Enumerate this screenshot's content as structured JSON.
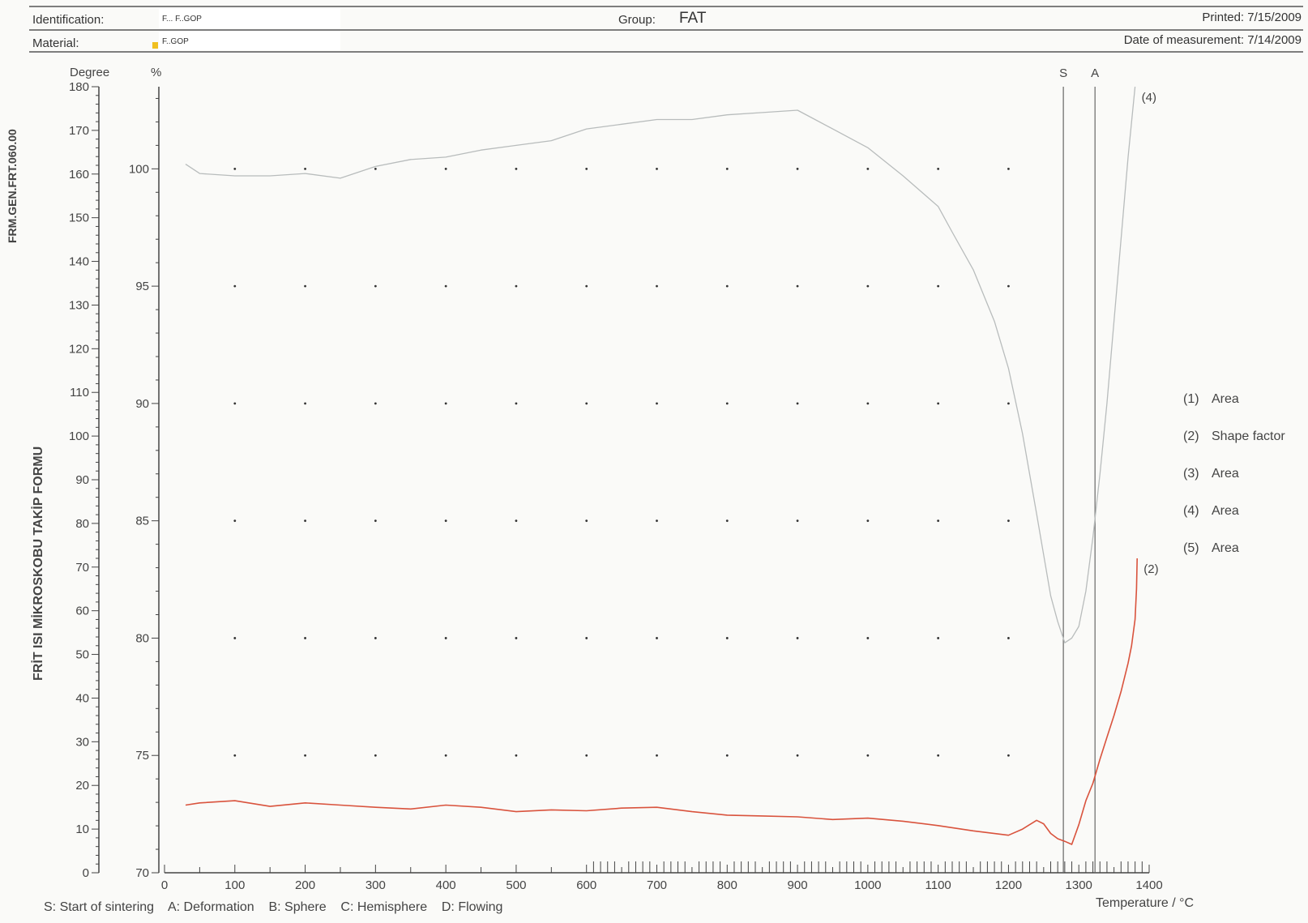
{
  "header": {
    "identification_label": "Identification:",
    "identification_value": "F... F..GOP",
    "material_label": "Material:",
    "material_value": "F..GOP",
    "group_label": "Group:",
    "group_value": "FAT",
    "printed": "Printed: 7/15/2009",
    "measured": "Date of measurement: 7/14/2009"
  },
  "side_labels": {
    "form_code": "FRM.GEN.FRT.060.00",
    "form_title": "FRİT ISI MİKROSKOBU TAKİP FORMU"
  },
  "footer": {
    "legend_text": "S: Start of sintering    A: Deformation    B: Sphere    C: Hemisphere    D: Flowing"
  },
  "colors": {
    "area": "#b8bcbc",
    "shape_factor": "#d9533d",
    "green": "#7fa36a",
    "teal": "#4b9c9a",
    "grey": "#c8cccc",
    "axis": "#444444"
  },
  "chart_data": {
    "type": "line",
    "xlabel": "Temperature / °C",
    "xlim": [
      0,
      1400
    ],
    "x_ticks": [
      0,
      100,
      200,
      300,
      400,
      500,
      600,
      700,
      800,
      900,
      1000,
      1100,
      1200,
      1300,
      1400
    ],
    "y_axes": {
      "degree": {
        "label": "Degree",
        "range": [
          0,
          180
        ],
        "ticks": [
          0,
          10,
          20,
          30,
          40,
          50,
          60,
          70,
          80,
          90,
          100,
          110,
          120,
          130,
          140,
          150,
          160,
          170,
          180
        ]
      },
      "percent": {
        "label": "%",
        "range": [
          70,
          103.5
        ],
        "ticks": [
          70,
          75,
          80,
          85,
          90,
          95,
          100
        ]
      }
    },
    "markers": [
      {
        "label": "S",
        "x": 1278
      },
      {
        "label": "A",
        "x": 1323
      }
    ],
    "legend": [
      {
        "id": "(1)",
        "label": "Area",
        "color": "#b0b8c0"
      },
      {
        "id": "(2)",
        "label": "Shape factor",
        "color": "#d9533d"
      },
      {
        "id": "(3)",
        "label": "Area",
        "color": "#7fa36a"
      },
      {
        "id": "(4)",
        "label": "Area",
        "color": "#4b9c9a"
      },
      {
        "id": "(5)",
        "label": "Area",
        "color": "#d0d4d4"
      }
    ],
    "series": [
      {
        "name": "(1) Area",
        "axis": "percent",
        "color": "#b8bcbc",
        "end_label": "(4)",
        "x": [
          30,
          50,
          100,
          150,
          200,
          250,
          300,
          350,
          400,
          450,
          500,
          550,
          600,
          650,
          700,
          750,
          800,
          850,
          900,
          950,
          1000,
          1050,
          1100,
          1120,
          1150,
          1180,
          1200,
          1220,
          1240,
          1260,
          1270,
          1280,
          1290,
          1300,
          1310,
          1320,
          1330,
          1340,
          1350,
          1360,
          1370,
          1380
        ],
        "y": [
          100.2,
          99.8,
          99.7,
          99.7,
          99.8,
          99.6,
          100.1,
          100.4,
          100.5,
          100.8,
          101.0,
          101.2,
          101.7,
          101.9,
          102.1,
          102.1,
          102.3,
          102.4,
          102.5,
          101.7,
          100.9,
          99.7,
          98.4,
          97.3,
          95.7,
          93.5,
          91.5,
          88.7,
          85.3,
          81.8,
          80.7,
          79.8,
          80.0,
          80.5,
          82.0,
          84.3,
          87.0,
          90.0,
          93.5,
          97.0,
          100.5,
          103.5
        ]
      },
      {
        "name": "(2) Shape factor",
        "axis": "degree",
        "color": "#d9533d",
        "end_label": "(2)",
        "x": [
          30,
          50,
          100,
          150,
          200,
          250,
          300,
          350,
          400,
          450,
          500,
          550,
          600,
          650,
          700,
          750,
          800,
          850,
          900,
          950,
          1000,
          1050,
          1100,
          1150,
          1200,
          1220,
          1240,
          1250,
          1260,
          1270,
          1280,
          1290,
          1300,
          1310,
          1320,
          1330,
          1340,
          1350,
          1360,
          1370,
          1375,
          1380,
          1382,
          1383
        ],
        "y": [
          15.5,
          16.0,
          16.5,
          15.2,
          16.0,
          15.5,
          15.0,
          14.6,
          15.5,
          15.0,
          14.0,
          14.4,
          14.2,
          14.8,
          15.0,
          14.0,
          13.2,
          13.0,
          12.8,
          12.2,
          12.5,
          11.8,
          10.8,
          9.6,
          8.6,
          10.0,
          12.0,
          11.2,
          9.0,
          7.8,
          7.2,
          6.5,
          11.0,
          16.5,
          20.5,
          26.0,
          31.0,
          36.0,
          41.5,
          48.0,
          52.0,
          58.0,
          65.0,
          72.0
        ]
      }
    ]
  }
}
